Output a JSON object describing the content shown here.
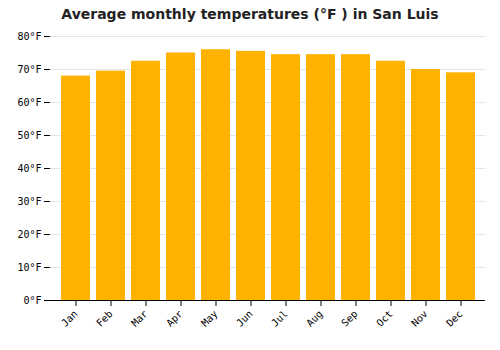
{
  "chart_data": {
    "type": "bar",
    "title": "Average monthly temperatures (°F ) in San Luis",
    "categories": [
      "Jan",
      "Feb",
      "Mar",
      "Apr",
      "May",
      "Jun",
      "Jul",
      "Aug",
      "Sep",
      "Oct",
      "Nov",
      "Dec"
    ],
    "values": [
      68,
      69.5,
      72.5,
      75,
      76,
      75.5,
      74.5,
      74.5,
      74.5,
      72.5,
      70,
      69
    ],
    "color": "#FFB300",
    "ylim": [
      0,
      80
    ],
    "yticks": [
      {
        "value": 0,
        "label": "0°F"
      },
      {
        "value": 10,
        "label": "10°F"
      },
      {
        "value": 20,
        "label": "20°F"
      },
      {
        "value": 30,
        "label": "30°F"
      },
      {
        "value": 40,
        "label": "40°F"
      },
      {
        "value": 50,
        "label": "50°F"
      },
      {
        "value": 60,
        "label": "60°F"
      },
      {
        "value": 70,
        "label": "70°F"
      },
      {
        "value": 80,
        "label": "80°F"
      }
    ],
    "grid": true
  }
}
